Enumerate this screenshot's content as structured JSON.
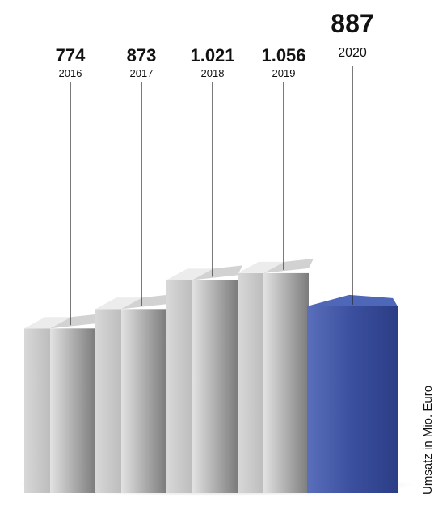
{
  "chart_data": {
    "type": "bar",
    "categories": [
      "2016",
      "2017",
      "2018",
      "2019",
      "2020"
    ],
    "values": [
      774,
      873,
      1021,
      1056,
      887
    ],
    "value_labels": [
      "774",
      "873",
      "1.021",
      "1.056",
      "887"
    ],
    "ylabel": "Umsatz in Mio. Euro",
    "highlight_index": 4,
    "colors": {
      "bar_front_light": "#dcdcdc",
      "bar_front_dark": "#7d7d7d",
      "bar_top": "#ececec",
      "highlight_front_light": "#4a5fae",
      "highlight_front_dark": "#2c3d86",
      "highlight_top": "#4e67b8",
      "highlight_side": "#253a7d"
    }
  }
}
